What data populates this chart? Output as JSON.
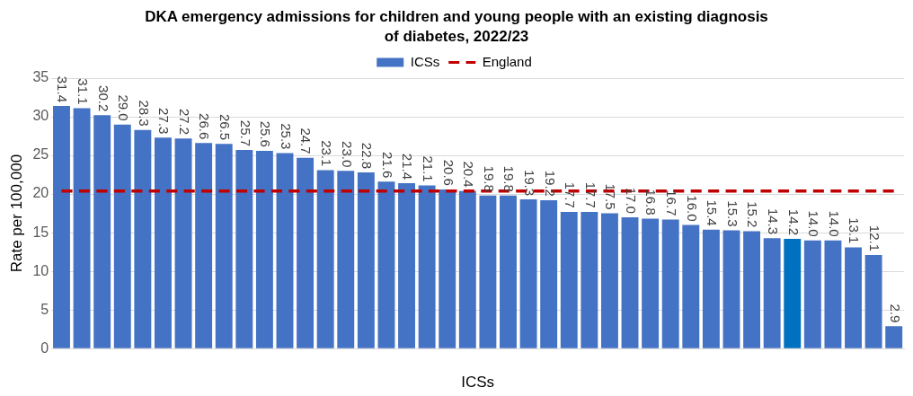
{
  "chart_data": {
    "type": "bar",
    "title": "DKA emergency admissions for children and young people with an existing diagnosis of diabetes, 2022/23",
    "xlabel": "ICSs",
    "ylabel": "Rate per 100,000",
    "categories": [
      null,
      null,
      null,
      null,
      null,
      null,
      null,
      null,
      null,
      null,
      null,
      null,
      null,
      null,
      null,
      null,
      null,
      null,
      null,
      null,
      null,
      null,
      null,
      null,
      null,
      null,
      null,
      null,
      null,
      null,
      null,
      null,
      null,
      null,
      null,
      null,
      null,
      null,
      null,
      null,
      null,
      null
    ],
    "series": [
      {
        "name": "ICSs",
        "color": "#4472c4",
        "colors": [
          "#4472c4",
          "#4472c4",
          "#4472c4",
          "#4472c4",
          "#4472c4",
          "#4472c4",
          "#4472c4",
          "#4472c4",
          "#4472c4",
          "#4472c4",
          "#4472c4",
          "#4472c4",
          "#4472c4",
          "#4472c4",
          "#4472c4",
          "#4472c4",
          "#4472c4",
          "#4472c4",
          "#4472c4",
          "#4472c4",
          "#4472c4",
          "#4472c4",
          "#4472c4",
          "#4472c4",
          "#4472c4",
          "#4472c4",
          "#4472c4",
          "#4472c4",
          "#4472c4",
          "#4472c4",
          "#4472c4",
          "#4472c4",
          "#4472c4",
          "#4472c4",
          "#4472c4",
          "#4472c4",
          "#0070c0",
          "#4472c4",
          "#4472c4",
          "#4472c4",
          "#4472c4",
          "#4472c4"
        ],
        "values": [
          31.4,
          31.1,
          30.2,
          29.0,
          28.3,
          27.3,
          27.2,
          26.6,
          26.5,
          25.7,
          25.6,
          25.3,
          24.7,
          23.1,
          23.0,
          22.8,
          21.6,
          21.4,
          21.1,
          20.6,
          20.4,
          19.8,
          19.8,
          19.3,
          19.2,
          17.7,
          17.7,
          17.5,
          17.0,
          16.8,
          16.7,
          16.0,
          15.4,
          15.3,
          15.2,
          14.3,
          14.2,
          14.0,
          14.0,
          13.1,
          12.1,
          2.9
        ],
        "value_labels": [
          "31.4",
          "31.1",
          "30.2",
          "29.0",
          "28.3",
          "27.3",
          "27.2",
          "26.6",
          "26.5",
          "25.7",
          "25.6",
          "25.3",
          "24.7",
          "23.1",
          "23.0",
          "22.8",
          "21.6",
          "21.4",
          "21.1",
          "20.6",
          "20.4",
          "19.8",
          "19.8",
          "19.3",
          "19.2",
          "17.7",
          "17.7",
          "17.5",
          "17.0",
          "16.8",
          "16.7",
          "16.0",
          "15.4",
          "15.3",
          "15.2",
          "14.3",
          "14.2",
          "14.0",
          "14.0",
          "13.1",
          "12.1",
          "2.9"
        ]
      },
      {
        "name": "England",
        "type": "line",
        "color": "#c00000",
        "line_style": "dashed",
        "marker": "none",
        "values": [
          20.4,
          20.4,
          20.4,
          20.4,
          20.4,
          20.4,
          20.4,
          20.4,
          20.4,
          20.4,
          20.4,
          20.4,
          20.4,
          20.4,
          20.4,
          20.4,
          20.4,
          20.4,
          20.4,
          20.4,
          20.4,
          20.4,
          20.4,
          20.4,
          20.4,
          20.4,
          20.4,
          20.4,
          20.4,
          20.4,
          20.4,
          20.4,
          20.4,
          20.4,
          20.4,
          20.4,
          20.4,
          20.4,
          20.4,
          20.4,
          20.4,
          20.4
        ]
      }
    ],
    "ylim": [
      0,
      35
    ],
    "yticks": [
      0,
      5,
      10,
      15,
      20,
      25,
      30,
      35
    ],
    "grid": "y",
    "legend": "top"
  }
}
